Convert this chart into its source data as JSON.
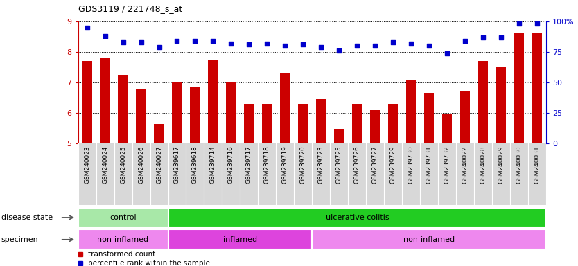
{
  "title": "GDS3119 / 221748_s_at",
  "samples": [
    "GSM240023",
    "GSM240024",
    "GSM240025",
    "GSM240026",
    "GSM240027",
    "GSM239617",
    "GSM239618",
    "GSM239714",
    "GSM239716",
    "GSM239717",
    "GSM239718",
    "GSM239719",
    "GSM239720",
    "GSM239723",
    "GSM239725",
    "GSM239726",
    "GSM239727",
    "GSM239729",
    "GSM239730",
    "GSM239731",
    "GSM239732",
    "GSM240022",
    "GSM240028",
    "GSM240029",
    "GSM240030",
    "GSM240031"
  ],
  "bar_values": [
    7.7,
    7.8,
    7.25,
    6.8,
    5.65,
    7.0,
    6.85,
    7.75,
    7.0,
    6.3,
    6.3,
    7.3,
    6.3,
    6.45,
    5.48,
    6.3,
    6.1,
    6.3,
    7.1,
    6.65,
    5.95,
    6.7,
    7.7,
    7.5,
    8.6,
    8.6
  ],
  "dot_values": [
    95,
    88,
    83,
    83,
    79,
    84,
    84,
    84,
    82,
    81,
    82,
    80,
    81,
    79,
    76,
    80,
    80,
    83,
    82,
    80,
    74,
    84,
    87,
    87,
    98,
    98
  ],
  "ylim_left": [
    5,
    9
  ],
  "ylim_right": [
    0,
    100
  ],
  "yticks_left": [
    5,
    6,
    7,
    8,
    9
  ],
  "yticks_right": [
    0,
    25,
    50,
    75,
    100
  ],
  "bar_color": "#cc0000",
  "dot_color": "#0000cc",
  "grid_color": "black",
  "bg_color": "#d8d8d8",
  "plot_bg": "#ffffff",
  "disease_state_groups": [
    {
      "label": "control",
      "start": 0,
      "end": 5,
      "color": "#a8e8a8"
    },
    {
      "label": "ulcerative colitis",
      "start": 5,
      "end": 26,
      "color": "#22cc22"
    }
  ],
  "specimen_groups": [
    {
      "label": "non-inflamed",
      "start": 0,
      "end": 5,
      "color": "#ee88ee"
    },
    {
      "label": "inflamed",
      "start": 5,
      "end": 13,
      "color": "#dd44dd"
    },
    {
      "label": "non-inflamed",
      "start": 13,
      "end": 26,
      "color": "#ee88ee"
    }
  ],
  "legend_bar_label": "transformed count",
  "legend_dot_label": "percentile rank within the sample",
  "disease_state_label": "disease state",
  "specimen_label": "specimen"
}
